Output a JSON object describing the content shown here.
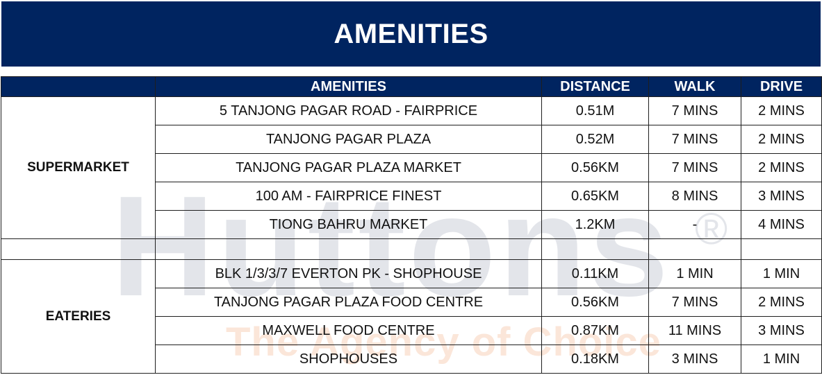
{
  "banner": {
    "title": "AMENITIES"
  },
  "watermark": {
    "logo": "Huttons",
    "registered": "®",
    "tagline": "The Agency of Choice"
  },
  "table": {
    "headers": {
      "category": "",
      "amenities": "AMENITIES",
      "distance": "DISTANCE",
      "walk": "WALK",
      "drive": "DRIVE"
    },
    "groups": [
      {
        "category": "SUPERMARKET",
        "rows": [
          {
            "amenity": "5 TANJONG PAGAR ROAD - FAIRPRICE",
            "distance": "0.51M",
            "walk": "7 MINS",
            "drive": "2 MINS"
          },
          {
            "amenity": "TANJONG PAGAR PLAZA",
            "distance": "0.52M",
            "walk": "7 MINS",
            "drive": "2 MINS"
          },
          {
            "amenity": "TANJONG PAGAR PLAZA MARKET",
            "distance": "0.56KM",
            "walk": "7 MINS",
            "drive": "2 MINS"
          },
          {
            "amenity": "100 AM - FAIRPRICE FINEST",
            "distance": "0.65KM",
            "walk": "8 MINS",
            "drive": "3 MINS"
          },
          {
            "amenity": "TIONG BAHRU MARKET",
            "distance": "1.2KM",
            "walk": "-",
            "drive": "4 MINS"
          }
        ]
      },
      {
        "category": "EATERIES",
        "rows": [
          {
            "amenity": "BLK 1/3/3/7 EVERTON PK - SHOPHOUSE",
            "distance": "0.11KM",
            "walk": "1 MIN",
            "drive": "1 MIN"
          },
          {
            "amenity": "TANJONG PAGAR PLAZA FOOD CENTRE",
            "distance": "0.56KM",
            "walk": "7 MINS",
            "drive": "2 MINS"
          },
          {
            "amenity": "MAXWELL FOOD CENTRE",
            "distance": "0.87KM",
            "walk": "11 MINS",
            "drive": "3 MINS"
          },
          {
            "amenity": "SHOPHOUSES",
            "distance": "0.18KM",
            "walk": "3 MINS",
            "drive": "1 MIN"
          }
        ]
      }
    ]
  }
}
